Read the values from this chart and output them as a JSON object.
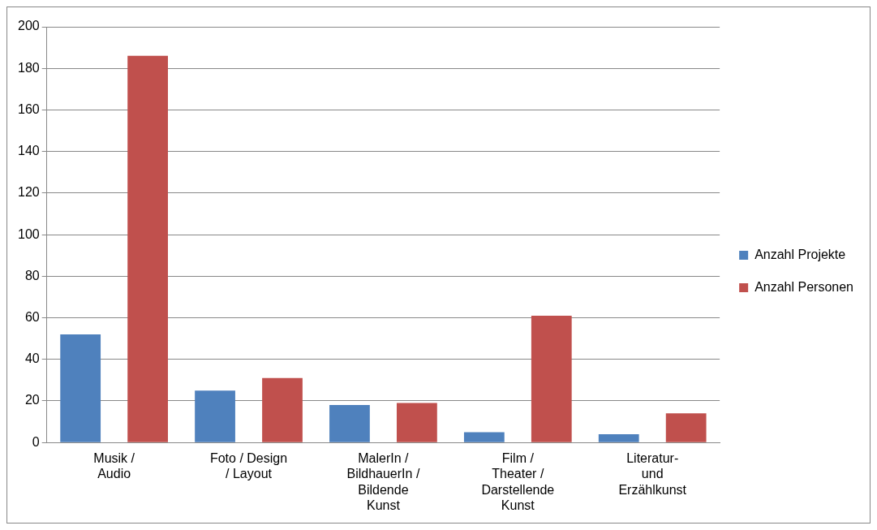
{
  "chart_data": {
    "type": "bar",
    "categories": [
      "Musik /\nAudio",
      "Foto / Design\n/ Layout",
      "MalerIn /\nBildhauerIn /\nBildende\nKunst",
      "Film /\nTheater /\nDarstellende\nKunst",
      "Literatur-\nund\nErzählkunst"
    ],
    "series": [
      {
        "name": "Anzahl Projekte",
        "color": "#4f81bd",
        "values": [
          52,
          25,
          18,
          5,
          4
        ]
      },
      {
        "name": "Anzahl Personen",
        "color": "#c0504d",
        "values": [
          186,
          31,
          19,
          61,
          14
        ]
      }
    ],
    "ylim": [
      0,
      200
    ],
    "yticks": [
      0,
      20,
      40,
      60,
      80,
      100,
      120,
      140,
      160,
      180,
      200
    ],
    "grid": "y",
    "legend": "right"
  }
}
